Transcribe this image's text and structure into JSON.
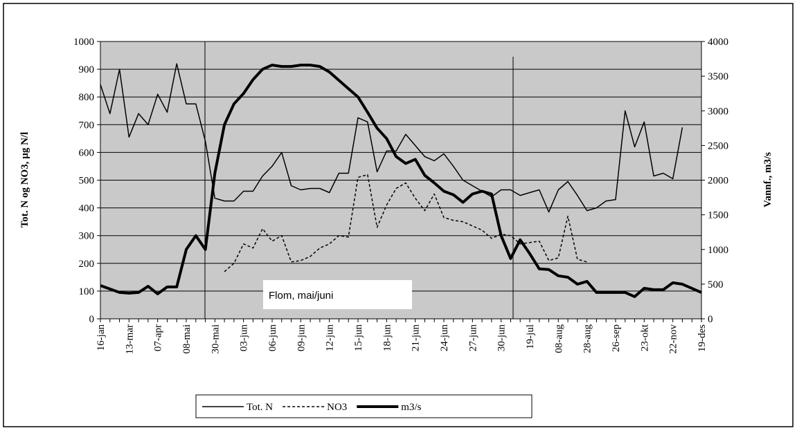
{
  "chart_data": {
    "type": "line",
    "ylabel": "Tot. N og NO3, µg N/l",
    "y2label": "Vannf., m3/s",
    "annotation": "Flom, mai/juni",
    "categories": [
      "16-jan",
      null,
      null,
      "13-mar",
      null,
      null,
      "07-apr",
      null,
      null,
      "08-mai",
      null,
      null,
      "30-mai",
      null,
      null,
      "03-jun",
      null,
      null,
      "06-jun",
      null,
      null,
      "09-jun",
      null,
      null,
      "12-jun",
      null,
      null,
      "15-jun",
      null,
      null,
      "18-jun",
      null,
      null,
      "21-jun",
      null,
      null,
      "24-jun",
      null,
      null,
      "27-jun",
      null,
      null,
      "30-jun",
      null,
      null,
      "19-jul",
      null,
      null,
      "08-aug",
      null,
      null,
      "28-aug",
      null,
      null,
      "26-sep",
      null,
      null,
      "23-okt",
      null,
      null,
      "22-nov",
      null,
      null,
      "19-des"
    ],
    "series": [
      {
        "name": "Tot. N",
        "color": "#000000",
        "width": 1.5,
        "dash": false,
        "values": [
          845,
          740,
          900,
          655,
          740,
          700,
          810,
          745,
          920,
          775,
          775,
          640,
          435,
          425,
          425,
          460,
          460,
          515,
          550,
          600,
          480,
          465,
          470,
          470,
          455,
          525,
          525,
          725,
          710,
          530,
          605,
          605,
          665,
          625,
          585,
          570,
          595,
          550,
          500,
          480,
          460,
          440,
          465,
          465,
          445,
          455,
          465,
          385,
          465,
          495,
          445,
          390,
          400,
          425,
          430,
          750,
          620,
          710,
          515,
          525,
          505,
          690,
          null,
          null
        ]
      },
      {
        "name": "NO3",
        "color": "#000000",
        "width": 1.5,
        "dash": true,
        "values": [
          null,
          null,
          null,
          null,
          null,
          null,
          null,
          null,
          null,
          null,
          null,
          null,
          null,
          170,
          200,
          270,
          255,
          325,
          280,
          300,
          205,
          210,
          225,
          255,
          270,
          300,
          295,
          510,
          520,
          330,
          410,
          470,
          490,
          435,
          390,
          450,
          365,
          355,
          350,
          335,
          320,
          290,
          305,
          300,
          270,
          275,
          280,
          210,
          220,
          370,
          215,
          205,
          null,
          null,
          null,
          null,
          null,
          null,
          null,
          null,
          null,
          null,
          null,
          null
        ]
      },
      {
        "name": "m3/s",
        "color": "#000000",
        "width": 4,
        "dash": false,
        "axis": "y2",
        "values": [
          480,
          430,
          380,
          370,
          380,
          470,
          360,
          460,
          460,
          1000,
          1200,
          1000,
          2100,
          2800,
          3100,
          3250,
          3450,
          3600,
          3660,
          3640,
          3640,
          3660,
          3660,
          3640,
          3560,
          3440,
          3320,
          3200,
          2980,
          2750,
          2600,
          2340,
          2240,
          2300,
          2070,
          1960,
          1840,
          1790,
          1680,
          1800,
          1840,
          1800,
          1200,
          870,
          1140,
          940,
          720,
          710,
          620,
          600,
          500,
          540,
          380,
          380,
          380,
          380,
          320,
          440,
          420,
          420,
          520,
          500,
          440,
          380
        ]
      }
    ],
    "ylim": [
      0,
      1000
    ],
    "yticks": [
      0,
      100,
      200,
      300,
      400,
      500,
      600,
      700,
      800,
      900,
      1000
    ],
    "y2lim": [
      0,
      4000
    ],
    "y2ticks": [
      0,
      500,
      1000,
      1500,
      2000,
      2500,
      3000,
      3500,
      4000
    ],
    "grid": true
  }
}
